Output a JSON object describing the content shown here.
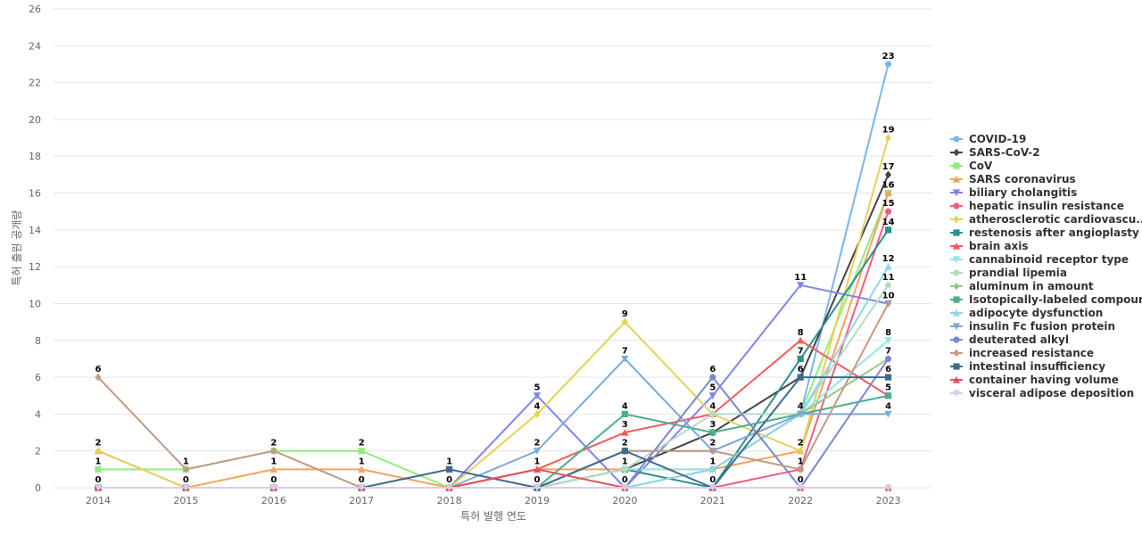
{
  "chart_data": {
    "type": "line",
    "xlabel": "특허 발행 연도",
    "ylabel": "특허 출원 공개량",
    "x": [
      "2014",
      "2015",
      "2016",
      "2017",
      "2018",
      "2019",
      "2020",
      "2021",
      "2022",
      "2023"
    ],
    "ylim": [
      0,
      26
    ],
    "yticks": [
      0,
      2,
      4,
      6,
      8,
      10,
      12,
      14,
      16,
      18,
      20,
      22,
      24,
      26
    ],
    "grid": true,
    "legend_position": "right",
    "series": [
      {
        "name": "COVID-19",
        "color": "#7cb5ec",
        "marker": "circle",
        "values": [
          0,
          0,
          0,
          0,
          0,
          0,
          2,
          2,
          4,
          23
        ]
      },
      {
        "name": "SARS-CoV-2",
        "color": "#434348",
        "marker": "diamond",
        "values": [
          0,
          0,
          0,
          0,
          0,
          0,
          1,
          3,
          6,
          17
        ]
      },
      {
        "name": "CoV",
        "color": "#90ed7d",
        "marker": "square",
        "values": [
          1,
          1,
          2,
          2,
          0,
          0,
          0,
          1,
          4,
          16
        ]
      },
      {
        "name": "SARS coronavirus",
        "color": "#f7a35c",
        "marker": "triangle",
        "values": [
          2,
          0,
          1,
          1,
          0,
          1,
          1,
          1,
          2,
          16
        ]
      },
      {
        "name": "biliary cholangitis",
        "color": "#8085e9",
        "marker": "triangle-down",
        "values": [
          0,
          0,
          0,
          0,
          0,
          5,
          0,
          5,
          11,
          10
        ]
      },
      {
        "name": "hepatic insulin resistance",
        "color": "#f15c80",
        "marker": "circle",
        "values": [
          0,
          0,
          0,
          0,
          0,
          0,
          0,
          0,
          1,
          15
        ]
      },
      {
        "name": "atherosclerotic cardiovascu...",
        "color": "#e4d354",
        "marker": "diamond",
        "values": [
          2,
          0,
          0,
          0,
          0,
          4,
          9,
          4,
          2,
          19
        ]
      },
      {
        "name": "restenosis after angioplasty",
        "color": "#2b908f",
        "marker": "square",
        "values": [
          0,
          0,
          0,
          0,
          0,
          0,
          1,
          0,
          7,
          14
        ]
      },
      {
        "name": "brain axis",
        "color": "#f45b5b",
        "marker": "triangle",
        "values": [
          0,
          0,
          0,
          0,
          0,
          1,
          3,
          4,
          8,
          5
        ]
      },
      {
        "name": "cannabinoid receptor type",
        "color": "#91e8e1",
        "marker": "triangle-down",
        "values": [
          0,
          0,
          0,
          0,
          0,
          0,
          1,
          1,
          4,
          8
        ]
      },
      {
        "name": "prandial lipemia",
        "color": "#b5dcc3",
        "marker": "circle",
        "values": [
          0,
          0,
          0,
          0,
          0,
          0,
          1,
          4,
          4,
          11
        ]
      },
      {
        "name": "aluminum in amount",
        "color": "#93c78c",
        "marker": "diamond",
        "values": [
          0,
          0,
          0,
          0,
          0,
          0,
          0,
          1,
          4,
          7
        ]
      },
      {
        "name": "Isotopically-labeled compound",
        "color": "#4cae8f",
        "marker": "square",
        "values": [
          0,
          0,
          0,
          0,
          0,
          0,
          4,
          3,
          4,
          5
        ]
      },
      {
        "name": "adipocyte dysfunction",
        "color": "#90d5eb",
        "marker": "triangle",
        "values": [
          0,
          0,
          0,
          0,
          0,
          0,
          0,
          1,
          4,
          12
        ]
      },
      {
        "name": "insulin Fc fusion protein",
        "color": "#7ea9d3",
        "marker": "triangle-down",
        "values": [
          0,
          0,
          0,
          0,
          0,
          2,
          7,
          2,
          4,
          4
        ]
      },
      {
        "name": "deuterated alkyl",
        "color": "#7b88c9",
        "marker": "circle",
        "values": [
          0,
          0,
          0,
          0,
          0,
          0,
          0,
          6,
          0,
          7
        ]
      },
      {
        "name": "increased resistance",
        "color": "#c29a82",
        "marker": "diamond",
        "values": [
          6,
          1,
          2,
          0,
          0,
          0,
          2,
          2,
          1,
          10
        ]
      },
      {
        "name": "intestinal insufficiency",
        "color": "#3d6c8e",
        "marker": "square",
        "values": [
          0,
          0,
          0,
          0,
          1,
          0,
          2,
          0,
          6,
          6
        ]
      },
      {
        "name": "container having volume",
        "color": "#e0535a",
        "marker": "triangle",
        "values": [
          0,
          0,
          0,
          0,
          0,
          1,
          0,
          0,
          0,
          0
        ]
      },
      {
        "name": "visceral adipose deposition",
        "color": "#dccbe8",
        "marker": "triangle-down",
        "values": [
          0,
          0,
          0,
          0,
          0,
          0,
          0,
          0,
          0,
          0
        ]
      }
    ],
    "data_labels": [
      {
        "x": "2014",
        "y": 6,
        "text": "6"
      },
      {
        "x": "2014",
        "y": 2,
        "text": "2"
      },
      {
        "x": "2014",
        "y": 1,
        "text": "1"
      },
      {
        "x": "2014",
        "y": 0,
        "text": "0"
      },
      {
        "x": "2015",
        "y": 1,
        "text": "1"
      },
      {
        "x": "2015",
        "y": 0,
        "text": "0"
      },
      {
        "x": "2016",
        "y": 2,
        "text": "2"
      },
      {
        "x": "2016",
        "y": 1,
        "text": "1"
      },
      {
        "x": "2016",
        "y": 0,
        "text": "0"
      },
      {
        "x": "2017",
        "y": 2,
        "text": "2"
      },
      {
        "x": "2017",
        "y": 1,
        "text": "1"
      },
      {
        "x": "2017",
        "y": 0,
        "text": "0"
      },
      {
        "x": "2018",
        "y": 1,
        "text": "1"
      },
      {
        "x": "2018",
        "y": 0,
        "text": "0"
      },
      {
        "x": "2019",
        "y": 5,
        "text": "5"
      },
      {
        "x": "2019",
        "y": 4,
        "text": "4"
      },
      {
        "x": "2019",
        "y": 2,
        "text": "2"
      },
      {
        "x": "2019",
        "y": 1,
        "text": "1"
      },
      {
        "x": "2019",
        "y": 0,
        "text": "0"
      },
      {
        "x": "2020",
        "y": 9,
        "text": "9"
      },
      {
        "x": "2020",
        "y": 7,
        "text": "7"
      },
      {
        "x": "2020",
        "y": 4,
        "text": "4"
      },
      {
        "x": "2020",
        "y": 3,
        "text": "3"
      },
      {
        "x": "2020",
        "y": 2,
        "text": "2"
      },
      {
        "x": "2020",
        "y": 1,
        "text": "1"
      },
      {
        "x": "2020",
        "y": 0,
        "text": "0"
      },
      {
        "x": "2021",
        "y": 6,
        "text": "6"
      },
      {
        "x": "2021",
        "y": 5,
        "text": "5"
      },
      {
        "x": "2021",
        "y": 4,
        "text": "4"
      },
      {
        "x": "2021",
        "y": 3,
        "text": "3"
      },
      {
        "x": "2021",
        "y": 2,
        "text": "2"
      },
      {
        "x": "2021",
        "y": 1,
        "text": "1"
      },
      {
        "x": "2021",
        "y": 0,
        "text": "0"
      },
      {
        "x": "2022",
        "y": 11,
        "text": "11"
      },
      {
        "x": "2022",
        "y": 8,
        "text": "8"
      },
      {
        "x": "2022",
        "y": 7,
        "text": "7"
      },
      {
        "x": "2022",
        "y": 6,
        "text": "6"
      },
      {
        "x": "2022",
        "y": 4,
        "text": "4"
      },
      {
        "x": "2022",
        "y": 2,
        "text": "2"
      },
      {
        "x": "2022",
        "y": 1,
        "text": "1"
      },
      {
        "x": "2022",
        "y": 0,
        "text": "0"
      },
      {
        "x": "2023",
        "y": 23,
        "text": "23"
      },
      {
        "x": "2023",
        "y": 19,
        "text": "19"
      },
      {
        "x": "2023",
        "y": 17,
        "text": "17"
      },
      {
        "x": "2023",
        "y": 16,
        "text": "16"
      },
      {
        "x": "2023",
        "y": 15,
        "text": "15"
      },
      {
        "x": "2023",
        "y": 14,
        "text": "14"
      },
      {
        "x": "2023",
        "y": 12,
        "text": "12"
      },
      {
        "x": "2023",
        "y": 11,
        "text": "11"
      },
      {
        "x": "2023",
        "y": 10,
        "text": "10"
      },
      {
        "x": "2023",
        "y": 8,
        "text": "8"
      },
      {
        "x": "2023",
        "y": 7,
        "text": "7"
      },
      {
        "x": "2023",
        "y": 6,
        "text": "6"
      },
      {
        "x": "2023",
        "y": 5,
        "text": "5"
      },
      {
        "x": "2023",
        "y": 4,
        "text": "4"
      }
    ]
  }
}
